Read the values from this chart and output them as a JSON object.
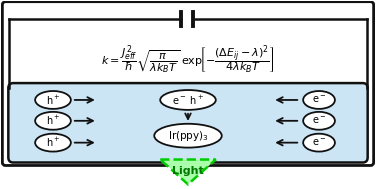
{
  "fig_width": 3.76,
  "fig_height": 1.89,
  "dpi": 100,
  "bg_color": "#ffffff",
  "box_color": "#cce5f5",
  "box_edge_color": "#111111",
  "arrow_color": "#111111",
  "circuit_color": "#111111",
  "oval_bg": "#ffffff",
  "oval_edge": "#111111",
  "light_text": "Light",
  "light_green_fill": "#aaffaa",
  "light_green_edge": "#00cc00"
}
